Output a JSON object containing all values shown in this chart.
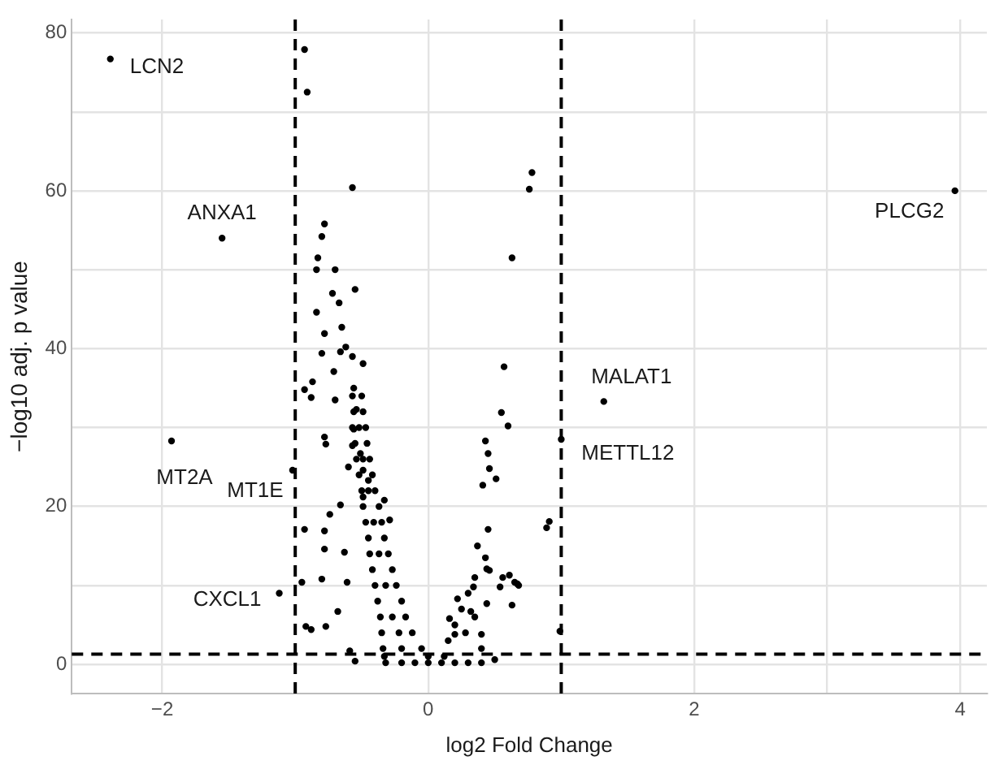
{
  "chart_data": {
    "type": "scatter",
    "xlabel": "log2 Fold Change",
    "ylabel": "−log10 adj. p value",
    "xlim": [
      -2.68,
      4.2
    ],
    "ylim": [
      -3.7,
      81.7
    ],
    "xticks": [
      -2,
      0,
      2,
      {
        "value": 3,
        "label": null
      },
      4
    ],
    "yticks": [
      0,
      {
        "value": 10,
        "label": null
      },
      20,
      {
        "value": 30,
        "label": null
      },
      40,
      {
        "value": 50,
        "label": null
      },
      60,
      {
        "value": 70,
        "label": null
      },
      80
    ],
    "grid": true,
    "marker": "circle",
    "ref_lines": [
      {
        "axis": "x",
        "value": -1,
        "line_style": "dashed",
        "color": "#000000"
      },
      {
        "axis": "x",
        "value": 1,
        "line_style": "dashed",
        "color": "#000000"
      },
      {
        "axis": "y",
        "value": 1.3,
        "line_style": "dashed",
        "color": "#000000"
      }
    ],
    "annotations": [
      {
        "text": "LCN2",
        "x": -2.39,
        "y": 76.7
      },
      {
        "text": "ANXA1",
        "x": -1.55,
        "y": 54
      },
      {
        "text": "MT2A",
        "x": -1.93,
        "y": 28.3
      },
      {
        "text": "MT1E",
        "x": -1.02,
        "y": 24.6
      },
      {
        "text": "CXCL1",
        "x": -1.12,
        "y": 9
      },
      {
        "text": "PLCG2",
        "x": 3.96,
        "y": 60
      },
      {
        "text": "MALAT1",
        "x": 1.32,
        "y": 33.3
      },
      {
        "text": "METTL12",
        "x": 1.0,
        "y": 28.5
      }
    ],
    "series": [
      {
        "color": "#000000",
        "x": [
          -2.39,
          -1.55,
          -1.93,
          -1.02,
          -1.12,
          3.96,
          1.32,
          1.0,
          -0.93,
          -0.91,
          -0.57,
          0.78,
          0.76,
          0.63,
          0.57,
          0.55,
          0.6,
          0.43,
          0.45,
          0.46,
          0.51,
          0.41,
          0.89,
          0.91,
          0.45,
          0.37,
          0.43,
          0.46,
          0.61,
          0.67,
          0.54,
          0.63,
          0.44,
          0.5,
          0.99,
          -0.78,
          -0.8,
          -0.83,
          -0.84,
          -0.7,
          -0.72,
          -0.55,
          -0.67,
          -0.84,
          -0.65,
          -0.78,
          -0.66,
          -0.62,
          -0.8,
          -0.57,
          -0.49,
          -0.71,
          -0.87,
          -0.93,
          -0.88,
          -0.7,
          -0.56,
          -0.54,
          -0.56,
          -0.78,
          -0.77,
          -0.57,
          -0.51,
          -0.6,
          -0.49,
          -0.45,
          -0.66,
          -0.49,
          -0.33,
          -0.29,
          -0.74,
          -0.93,
          -0.78,
          -0.78,
          -0.63,
          -0.95,
          -0.8,
          -0.61,
          -0.68,
          -0.92,
          -0.77,
          -0.88,
          -0.55,
          -0.59,
          0.22,
          0.34,
          0.16,
          0.32,
          0.4,
          0.2,
          0.56,
          0.65,
          0.68,
          0.44,
          -0.57,
          -0.5,
          -0.56,
          -0.49,
          -0.57,
          -0.47,
          -0.52,
          -0.55,
          -0.46,
          -0.54,
          -0.44,
          -0.49,
          -0.52,
          -0.42,
          -0.5,
          -0.4,
          -0.45,
          -0.49,
          -0.37,
          -0.47,
          -0.35,
          -0.41,
          -0.45,
          -0.33,
          -0.44,
          -0.3,
          -0.37,
          -0.42,
          -0.27,
          -0.4,
          -0.24,
          -0.32,
          -0.38,
          -0.2,
          -0.36,
          -0.17,
          -0.27,
          -0.35,
          -0.12,
          -0.22,
          -0.34,
          -0.05,
          -0.2,
          -0.33,
          0.0,
          -0.32,
          -0.2,
          -0.1,
          0.0,
          0.1,
          0.2,
          0.3,
          0.4,
          0.12,
          0.15,
          0.2,
          0.25,
          0.3,
          0.35,
          0.28,
          0.35,
          0.4
        ],
        "values": [
          76.7,
          54,
          28.3,
          24.6,
          9,
          60,
          33.3,
          28.5,
          77.9,
          72.5,
          60.4,
          62.3,
          60.2,
          51.5,
          37.7,
          31.9,
          30.2,
          28.3,
          26.7,
          24.8,
          23.5,
          22.7,
          17.3,
          18.1,
          17.1,
          15,
          13.5,
          11.9,
          11.3,
          10.2,
          9.8,
          7.5,
          7.7,
          0.6,
          4.2,
          55.8,
          54.2,
          51.5,
          50,
          50,
          47,
          47.5,
          45.8,
          44.6,
          42.7,
          41.9,
          39.6,
          40.2,
          39.4,
          39,
          38.1,
          37.1,
          35.8,
          34.8,
          33.8,
          33.5,
          35,
          32.3,
          29.8,
          28.8,
          27.9,
          27.7,
          26.7,
          25,
          24.6,
          23.3,
          20.2,
          21.2,
          20.8,
          18.3,
          19,
          17.1,
          16.9,
          14.6,
          14.2,
          10.4,
          10.8,
          10.4,
          6.7,
          4.8,
          4.8,
          4.4,
          0.4,
          1.7,
          8.3,
          9.8,
          5.8,
          6.7,
          3.8,
          3.8,
          11,
          10.4,
          10,
          12.1,
          34,
          34,
          32,
          32,
          30,
          30,
          30,
          28,
          28,
          26,
          26,
          26,
          24,
          24,
          22,
          22,
          22,
          20,
          20,
          18,
          18,
          18,
          16,
          16,
          14,
          14,
          14,
          12,
          12,
          10,
          10,
          10,
          8,
          8,
          6,
          6,
          6,
          4,
          4,
          4,
          2,
          2,
          2,
          1,
          1,
          0.2,
          0.2,
          0.2,
          0.2,
          0.2,
          0.2,
          0.2,
          0.2,
          1,
          3,
          5,
          7,
          9,
          11,
          4,
          6,
          2
        ]
      }
    ]
  }
}
